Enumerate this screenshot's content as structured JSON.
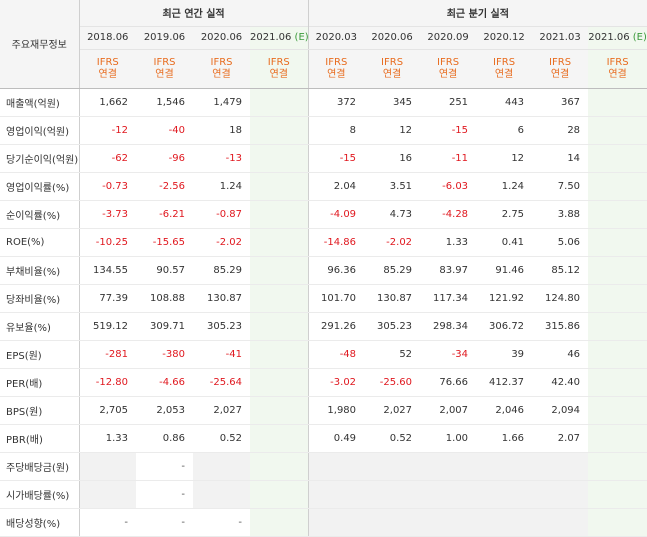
{
  "header": {
    "corner_label": "주요재무정보",
    "annual_group": "최근 연간 실적",
    "quarter_group": "최근 분기 실적",
    "annual_periods": [
      "2018.06",
      "2019.06",
      "2020.06"
    ],
    "annual_estimate": {
      "period": "2021.06",
      "marker": "(E)"
    },
    "quarter_periods": [
      "2020.03",
      "2020.06",
      "2020.09",
      "2020.12",
      "2021.03"
    ],
    "quarter_estimate": {
      "period": "2021.06",
      "marker": "(E)"
    },
    "basis_line1": "IFRS",
    "basis_line2": "연결"
  },
  "rows": [
    {
      "label": "매출액(억원)",
      "annual": [
        "1,662",
        "1,546",
        "1,479",
        ""
      ],
      "quarter": [
        "372",
        "345",
        "251",
        "443",
        "367",
        ""
      ]
    },
    {
      "label": "영업이익(억원)",
      "annual": [
        "-12",
        "-40",
        "18",
        ""
      ],
      "quarter": [
        "8",
        "12",
        "-15",
        "6",
        "28",
        ""
      ]
    },
    {
      "label": "당기순이익(억원)",
      "annual": [
        "-62",
        "-96",
        "-13",
        ""
      ],
      "quarter": [
        "-15",
        "16",
        "-11",
        "12",
        "14",
        ""
      ]
    },
    {
      "label": "영업이익률(%)",
      "annual": [
        "-0.73",
        "-2.56",
        "1.24",
        ""
      ],
      "quarter": [
        "2.04",
        "3.51",
        "-6.03",
        "1.24",
        "7.50",
        ""
      ]
    },
    {
      "label": "순이익률(%)",
      "annual": [
        "-3.73",
        "-6.21",
        "-0.87",
        ""
      ],
      "quarter": [
        "-4.09",
        "4.73",
        "-4.28",
        "2.75",
        "3.88",
        ""
      ]
    },
    {
      "label": "ROE(%)",
      "annual": [
        "-10.25",
        "-15.65",
        "-2.02",
        ""
      ],
      "quarter": [
        "-14.86",
        "-2.02",
        "1.33",
        "0.41",
        "5.06",
        ""
      ]
    },
    {
      "label": "부채비율(%)",
      "annual": [
        "134.55",
        "90.57",
        "85.29",
        ""
      ],
      "quarter": [
        "96.36",
        "85.29",
        "83.97",
        "91.46",
        "85.12",
        ""
      ]
    },
    {
      "label": "당좌비율(%)",
      "annual": [
        "77.39",
        "108.88",
        "130.87",
        ""
      ],
      "quarter": [
        "101.70",
        "130.87",
        "117.34",
        "121.92",
        "124.80",
        ""
      ]
    },
    {
      "label": "유보율(%)",
      "annual": [
        "519.12",
        "309.71",
        "305.23",
        ""
      ],
      "quarter": [
        "291.26",
        "305.23",
        "298.34",
        "306.72",
        "315.86",
        ""
      ]
    },
    {
      "label": "EPS(원)",
      "annual": [
        "-281",
        "-380",
        "-41",
        ""
      ],
      "quarter": [
        "-48",
        "52",
        "-34",
        "39",
        "46",
        ""
      ]
    },
    {
      "label": "PER(배)",
      "annual": [
        "-12.80",
        "-4.66",
        "-25.64",
        ""
      ],
      "quarter": [
        "-3.02",
        "-25.60",
        "76.66",
        "412.37",
        "42.40",
        ""
      ]
    },
    {
      "label": "BPS(원)",
      "annual": [
        "2,705",
        "2,053",
        "2,027",
        ""
      ],
      "quarter": [
        "1,980",
        "2,027",
        "2,007",
        "2,046",
        "2,094",
        ""
      ]
    },
    {
      "label": "PBR(배)",
      "annual": [
        "1.33",
        "0.86",
        "0.52",
        ""
      ],
      "quarter": [
        "0.49",
        "0.52",
        "1.00",
        "1.66",
        "2.07",
        ""
      ]
    },
    {
      "label": "주당배당금(원)",
      "annual": [
        "",
        "-",
        "",
        ""
      ],
      "quarter": [
        "",
        "",
        "",
        "",
        "",
        ""
      ]
    },
    {
      "label": "시가배당률(%)",
      "annual": [
        "",
        "-",
        "",
        ""
      ],
      "quarter": [
        "",
        "",
        "",
        "",
        "",
        ""
      ]
    },
    {
      "label": "배당성향(%)",
      "annual": [
        "-",
        "-",
        "-",
        ""
      ],
      "quarter": [
        "",
        "",
        "",
        "",
        "",
        ""
      ]
    }
  ],
  "colors": {
    "negative": "#e0181f",
    "ifrs": "#e86c1f",
    "estimate": "#3b9a3b",
    "estimate_bg": "#f1f8ef"
  }
}
